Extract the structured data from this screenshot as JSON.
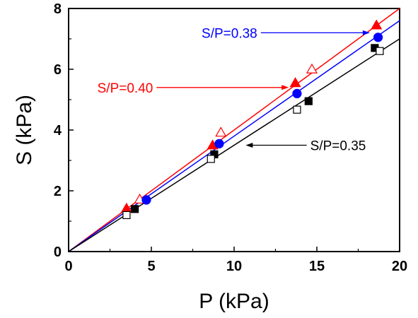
{
  "chart_data": {
    "type": "scatter",
    "xlabel": "P (kPa)",
    "ylabel": "S (kPa)",
    "xlim": [
      0,
      20
    ],
    "ylim": [
      0,
      8
    ],
    "x_ticks": [
      "0",
      "5",
      "10",
      "15",
      "20"
    ],
    "y_ticks": [
      "0",
      "2",
      "4",
      "6",
      "8"
    ],
    "grid": false,
    "series": [
      {
        "color": "#ff0000",
        "slope": 0.4,
        "markers": [
          {
            "shape": "triangle",
            "filled": true,
            "points": [
              [
                3.5,
                1.42
              ],
              [
                8.7,
                3.5
              ],
              [
                13.7,
                5.55
              ],
              [
                18.6,
                7.45
              ]
            ]
          },
          {
            "shape": "triangle",
            "filled": false,
            "points": [
              [
                4.3,
                1.72
              ],
              [
                9.2,
                3.92
              ],
              [
                14.7,
                6.0
              ]
            ]
          }
        ]
      },
      {
        "color": "#0000ff",
        "slope": 0.38,
        "markers": [
          {
            "shape": "circle",
            "filled": true,
            "points": [
              [
                4.7,
                1.7
              ],
              [
                9.1,
                3.55
              ],
              [
                13.8,
                5.2
              ],
              [
                18.7,
                7.05
              ]
            ]
          }
        ]
      },
      {
        "color": "#000000",
        "slope": 0.35,
        "markers": [
          {
            "shape": "square",
            "filled": true,
            "points": [
              [
                4.0,
                1.4
              ],
              [
                8.8,
                3.2
              ],
              [
                14.5,
                4.95
              ],
              [
                18.5,
                6.7
              ]
            ]
          },
          {
            "shape": "square",
            "filled": false,
            "points": [
              [
                3.5,
                1.2
              ],
              [
                8.6,
                3.05
              ],
              [
                13.8,
                4.67
              ],
              [
                18.8,
                6.6
              ]
            ]
          }
        ]
      }
    ],
    "annotations": [
      {
        "text": "S/P=0.38",
        "color": "#0000ff",
        "text_at": [
          11.4,
          7.2
        ],
        "arrow_to": [
          18.2,
          7.2
        ]
      },
      {
        "text": "S/P=0.40",
        "color": "#ff0000",
        "text_at": [
          5.1,
          5.4
        ],
        "arrow_to": [
          13.3,
          5.4
        ]
      },
      {
        "text": "S/P=0.35",
        "color": "#000000",
        "text_at": [
          14.6,
          3.5
        ],
        "arrow_to": [
          10.7,
          3.5
        ]
      }
    ]
  }
}
